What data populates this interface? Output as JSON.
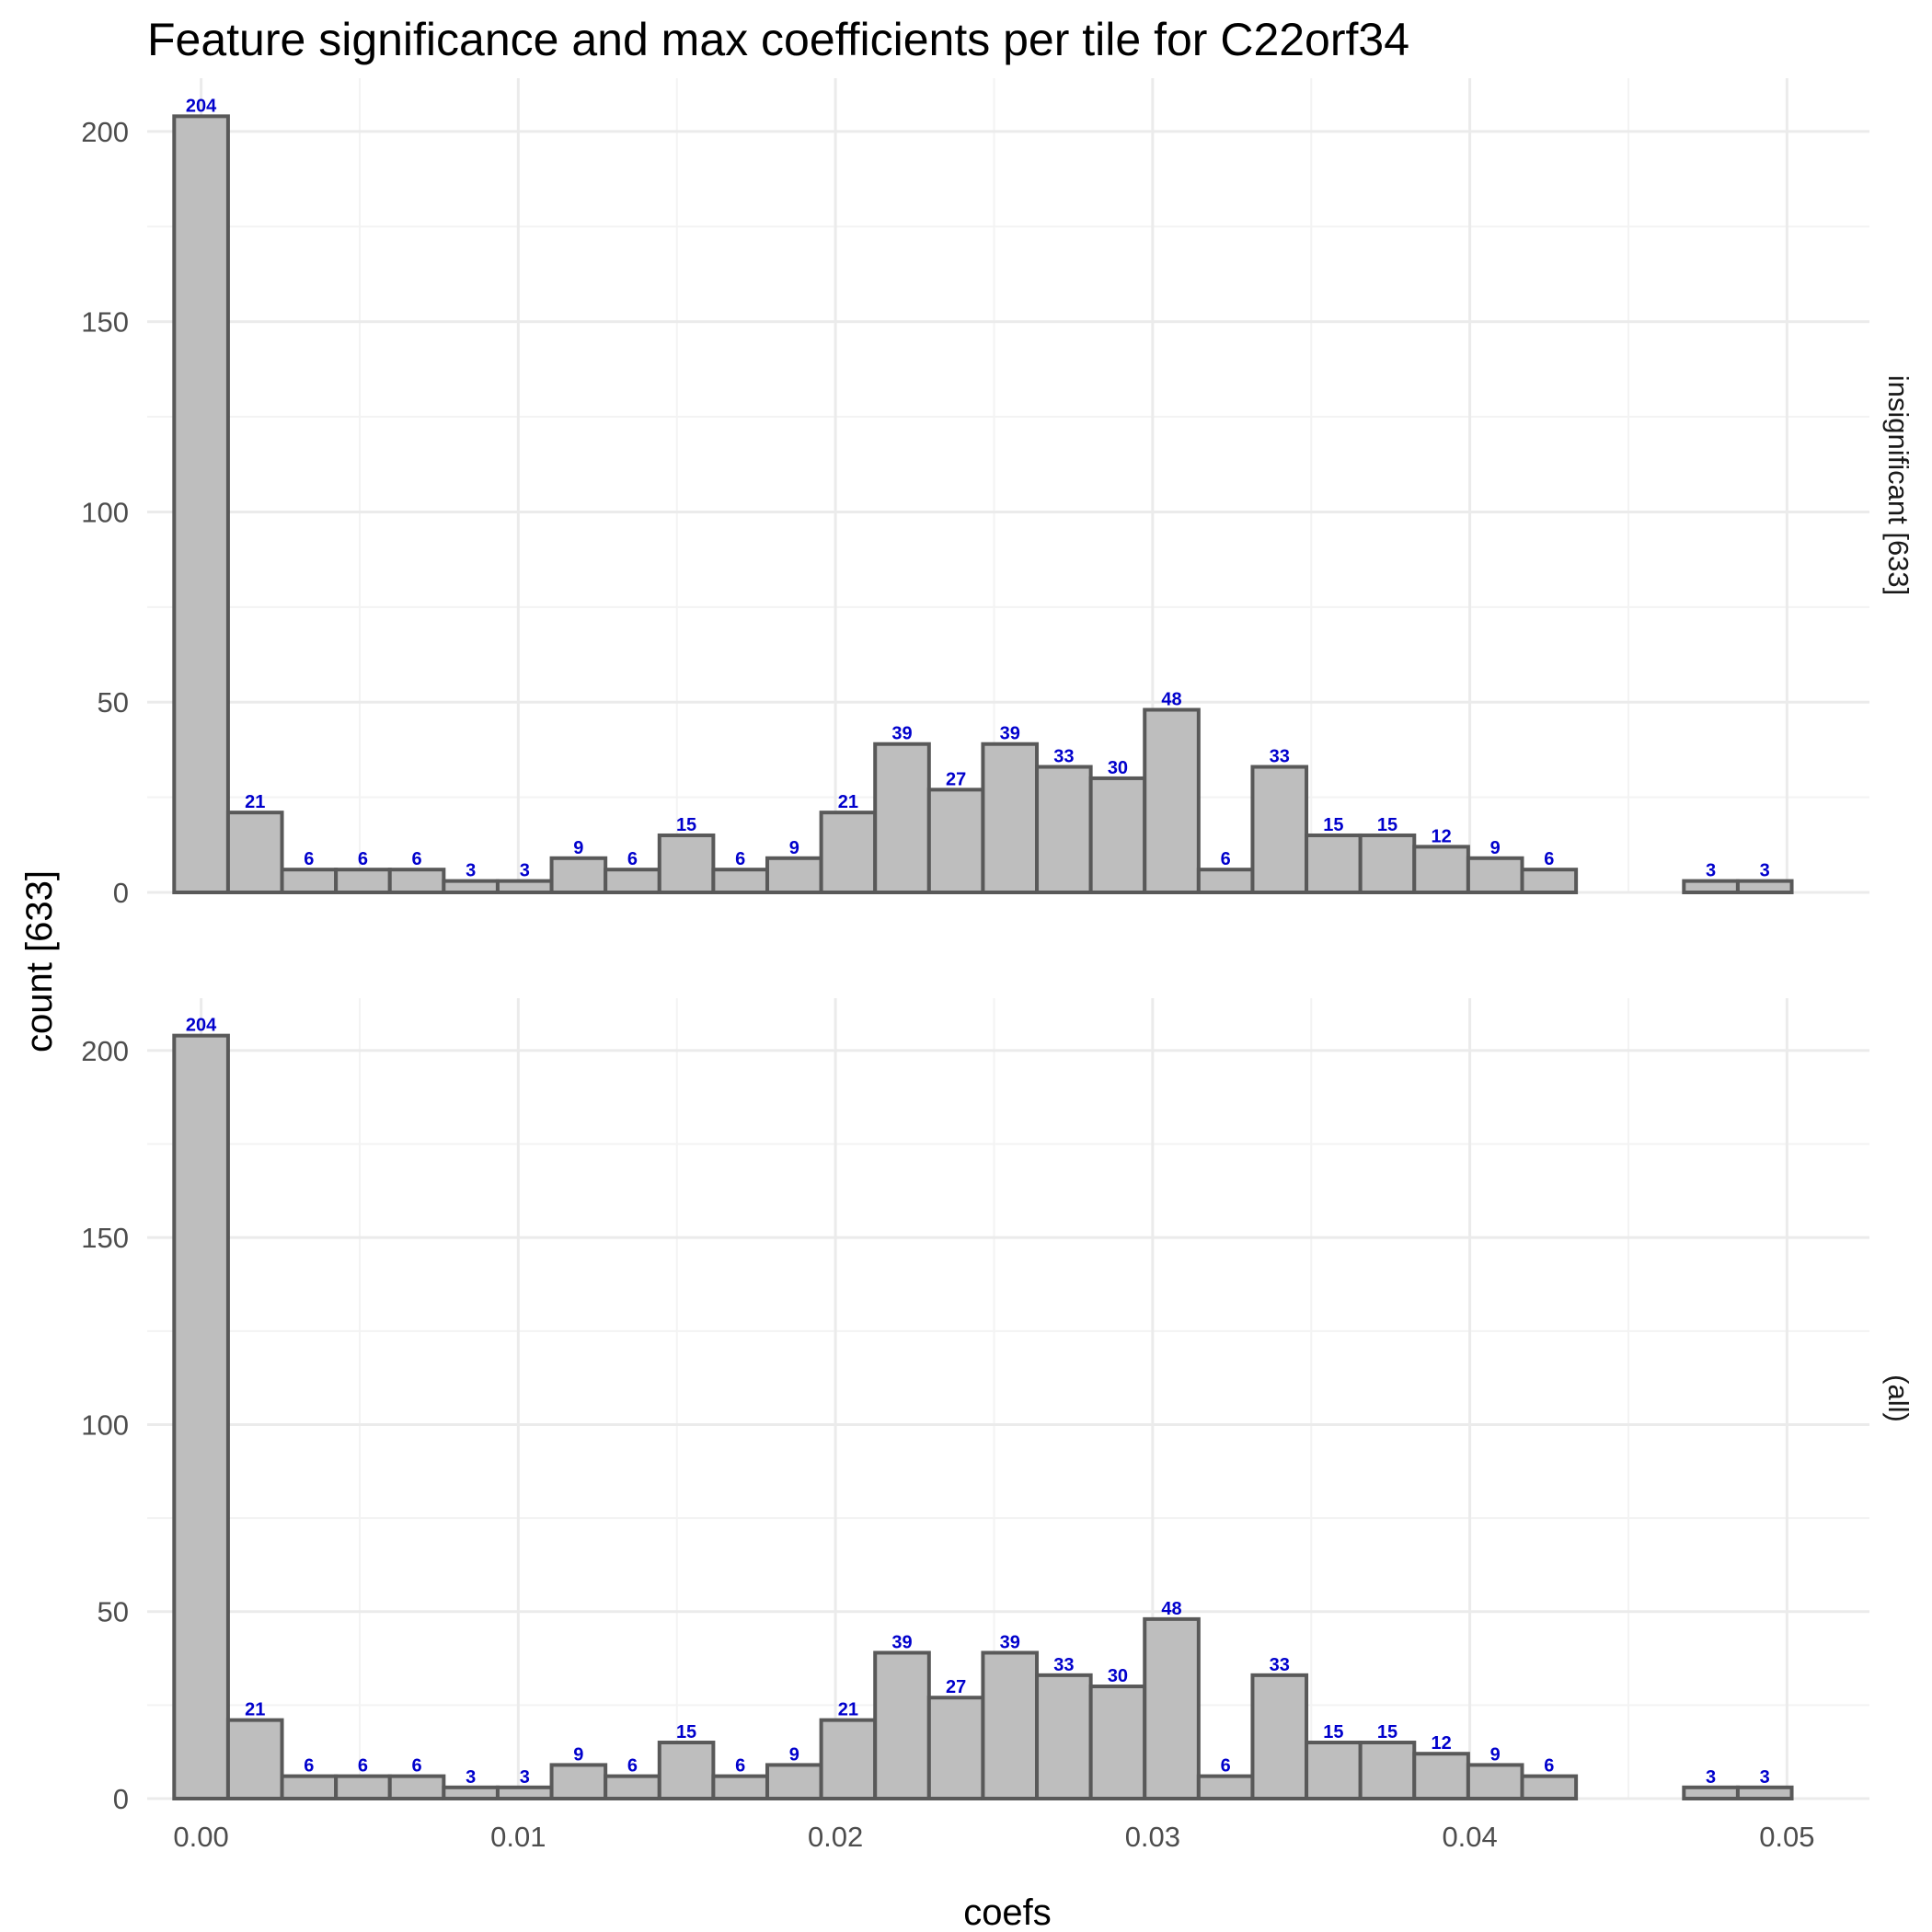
{
  "chart_data": {
    "type": "bar",
    "title": "Feature significance and max coefficients per tile for C22orf34",
    "xlabel": "coefs",
    "ylabel": "count [633]",
    "xlim": [
      -0.0017,
      0.0526
    ],
    "ylim": [
      0,
      214
    ],
    "x_ticks": [
      "0.00",
      "0.01",
      "0.02",
      "0.03",
      "0.04",
      "0.05"
    ],
    "y_ticks": [
      "0",
      "50",
      "100",
      "150",
      "200"
    ],
    "grid": true,
    "bin_width": 0.0017,
    "bin_centers": [
      0.0,
      0.0017,
      0.0034,
      0.0051,
      0.0068,
      0.0085,
      0.0102,
      0.0119,
      0.0136,
      0.0153,
      0.017,
      0.0187,
      0.0204,
      0.0221,
      0.0238,
      0.0255,
      0.0272,
      0.0289,
      0.0306,
      0.0323,
      0.034,
      0.0357,
      0.0374,
      0.0391,
      0.0408,
      0.0425,
      0.0442,
      0.0459,
      0.0476,
      0.0493
    ],
    "panels": [
      {
        "strip": "insignificant [633]",
        "values": [
          204,
          21,
          6,
          6,
          6,
          3,
          3,
          9,
          6,
          15,
          6,
          9,
          21,
          39,
          27,
          39,
          33,
          30,
          48,
          6,
          33,
          15,
          15,
          12,
          9,
          6,
          0,
          0,
          3,
          3
        ]
      },
      {
        "strip": "(all)",
        "values": [
          204,
          21,
          6,
          6,
          6,
          3,
          3,
          9,
          6,
          15,
          6,
          9,
          21,
          39,
          27,
          39,
          33,
          30,
          48,
          6,
          33,
          15,
          15,
          12,
          9,
          6,
          0,
          0,
          3,
          3
        ]
      }
    ],
    "colors": {
      "bar_fill": "#bebebe",
      "bar_stroke": "#595959",
      "label": "#0000cc"
    }
  }
}
